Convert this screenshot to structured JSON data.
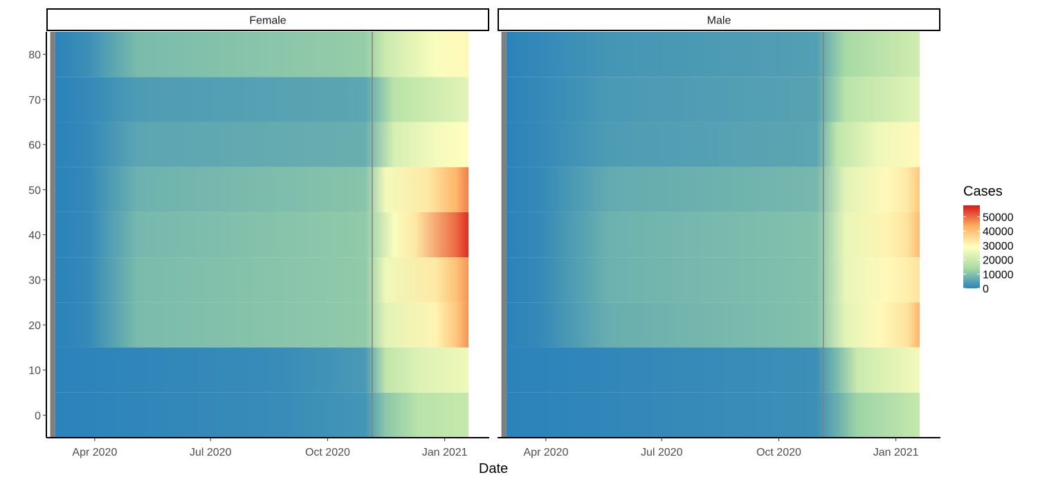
{
  "chart_data": {
    "type": "heatmap",
    "title": "",
    "xlabel": "Date",
    "ylabel": "",
    "facets": [
      {
        "name": "Female",
        "rows": [
          {
            "age": 0,
            "stops": [
              [
                0,
                0
              ],
              [
                0.55,
                1500
              ],
              [
                0.75,
                3000
              ],
              [
                0.8,
                11000
              ],
              [
                0.88,
                17000
              ],
              [
                1,
                19000
              ]
            ]
          },
          {
            "age": 10,
            "stops": [
              [
                0,
                0
              ],
              [
                0.55,
                1500
              ],
              [
                0.75,
                3500
              ],
              [
                0.8,
                18000
              ],
              [
                0.88,
                23000
              ],
              [
                1,
                26000
              ]
            ]
          },
          {
            "age": 20,
            "stops": [
              [
                0,
                0
              ],
              [
                0.08,
                1000
              ],
              [
                0.2,
                9000
              ],
              [
                0.75,
                11500
              ],
              [
                0.8,
                24000
              ],
              [
                0.92,
                31000
              ],
              [
                0.97,
                39000
              ],
              [
                1,
                46000
              ]
            ]
          },
          {
            "age": 30,
            "stops": [
              [
                0,
                0
              ],
              [
                0.08,
                1000
              ],
              [
                0.2,
                9000
              ],
              [
                0.75,
                11500
              ],
              [
                0.8,
                26000
              ],
              [
                0.92,
                33000
              ],
              [
                0.97,
                40000
              ],
              [
                1,
                46000
              ]
            ]
          },
          {
            "age": 40,
            "stops": [
              [
                0,
                0
              ],
              [
                0.08,
                1000
              ],
              [
                0.2,
                8500
              ],
              [
                0.75,
                11500
              ],
              [
                0.82,
                28000
              ],
              [
                0.87,
                33000
              ],
              [
                0.97,
                50000
              ],
              [
                1,
                56000
              ]
            ]
          },
          {
            "age": 50,
            "stops": [
              [
                0,
                0
              ],
              [
                0.08,
                1000
              ],
              [
                0.2,
                7500
              ],
              [
                0.75,
                10500
              ],
              [
                0.8,
                27000
              ],
              [
                0.9,
                33000
              ],
              [
                0.97,
                42000
              ],
              [
                1,
                48000
              ]
            ]
          },
          {
            "age": 60,
            "stops": [
              [
                0,
                0
              ],
              [
                0.08,
                1000
              ],
              [
                0.2,
                5500
              ],
              [
                0.75,
                7000
              ],
              [
                0.82,
                22000
              ],
              [
                0.92,
                27000
              ],
              [
                1,
                29000
              ]
            ]
          },
          {
            "age": 70,
            "stops": [
              [
                0,
                0
              ],
              [
                0.08,
                1000
              ],
              [
                0.2,
                4000
              ],
              [
                0.75,
                5500
              ],
              [
                0.82,
                17000
              ],
              [
                0.87,
                19000
              ],
              [
                1,
                24000
              ]
            ]
          },
          {
            "age": 80,
            "stops": [
              [
                0,
                0
              ],
              [
                0.08,
                2000
              ],
              [
                0.2,
                9000
              ],
              [
                0.75,
                12000
              ],
              [
                0.8,
                20000
              ],
              [
                0.92,
                28000
              ],
              [
                1,
                30000
              ]
            ]
          }
        ]
      },
      {
        "name": "Male",
        "rows": [
          {
            "age": 0,
            "stops": [
              [
                0,
                0
              ],
              [
                0.75,
                2000
              ],
              [
                0.8,
                7000
              ],
              [
                0.85,
                13000
              ],
              [
                1,
                19000
              ]
            ]
          },
          {
            "age": 10,
            "stops": [
              [
                0,
                0
              ],
              [
                0.75,
                2000
              ],
              [
                0.8,
                9000
              ],
              [
                0.85,
                20000
              ],
              [
                1,
                27000
              ]
            ]
          },
          {
            "age": 20,
            "stops": [
              [
                0,
                0
              ],
              [
                0.08,
                1000
              ],
              [
                0.25,
                7000
              ],
              [
                0.75,
                10000
              ],
              [
                0.82,
                24000
              ],
              [
                0.9,
                30000
              ],
              [
                0.97,
                34000
              ],
              [
                1,
                42000
              ]
            ]
          },
          {
            "age": 30,
            "stops": [
              [
                0,
                0
              ],
              [
                0.08,
                1000
              ],
              [
                0.25,
                7500
              ],
              [
                0.75,
                10000
              ],
              [
                0.82,
                25000
              ],
              [
                0.92,
                30000
              ],
              [
                0.97,
                32000
              ],
              [
                1,
                34000
              ]
            ]
          },
          {
            "age": 40,
            "stops": [
              [
                0,
                0
              ],
              [
                0.08,
                1000
              ],
              [
                0.25,
                7500
              ],
              [
                0.75,
                10000
              ],
              [
                0.82,
                25000
              ],
              [
                0.92,
                31000
              ],
              [
                0.97,
                34000
              ],
              [
                1,
                41000
              ]
            ]
          },
          {
            "age": 50,
            "stops": [
              [
                0,
                0
              ],
              [
                0.08,
                1000
              ],
              [
                0.25,
                6500
              ],
              [
                0.75,
                8500
              ],
              [
                0.82,
                24000
              ],
              [
                0.92,
                30000
              ],
              [
                0.97,
                33000
              ],
              [
                1,
                39000
              ]
            ]
          },
          {
            "age": 60,
            "stops": [
              [
                0,
                0
              ],
              [
                0.08,
                1000
              ],
              [
                0.25,
                4000
              ],
              [
                0.75,
                5500
              ],
              [
                0.8,
                18000
              ],
              [
                0.9,
                26000
              ],
              [
                1,
                30000
              ]
            ]
          },
          {
            "age": 70,
            "stops": [
              [
                0,
                0
              ],
              [
                0.08,
                1000
              ],
              [
                0.25,
                3500
              ],
              [
                0.75,
                5000
              ],
              [
                0.82,
                17000
              ],
              [
                1,
                24000
              ]
            ]
          },
          {
            "age": 80,
            "stops": [
              [
                0,
                0
              ],
              [
                0.08,
                1000
              ],
              [
                0.25,
                3000
              ],
              [
                0.75,
                4500
              ],
              [
                0.82,
                14000
              ],
              [
                1,
                21000
              ]
            ]
          }
        ]
      }
    ],
    "x_range": [
      "2020-02-23",
      "2021-02-05"
    ],
    "data_start": "2020-03-01",
    "y_range": [
      -5,
      85
    ],
    "y_ticks": [
      0,
      10,
      20,
      30,
      40,
      50,
      60,
      70,
      80
    ],
    "x_ticks": [
      {
        "label": "Apr 2020",
        "date": "2020-04-01"
      },
      {
        "label": "Jul 2020",
        "date": "2020-07-01"
      },
      {
        "label": "Oct 2020",
        "date": "2020-10-01"
      },
      {
        "label": "Jan 2021",
        "date": "2021-01-01"
      }
    ],
    "vline_date": "2020-11-05",
    "legend": {
      "title": "Cases",
      "position": "right",
      "limits": [
        0,
        58000
      ],
      "breaks": [
        0,
        10000,
        20000,
        30000,
        40000,
        50000
      ],
      "labels": [
        "0",
        "10000",
        "20000",
        "30000",
        "40000",
        "50000"
      ]
    },
    "colors": {
      "palette": [
        "#2b83ba",
        "#abdda4",
        "#ffffbf",
        "#fdae61",
        "#d7191c"
      ],
      "missing": "#7f7f7f",
      "vline": "#808080",
      "axis": "#000000"
    }
  }
}
